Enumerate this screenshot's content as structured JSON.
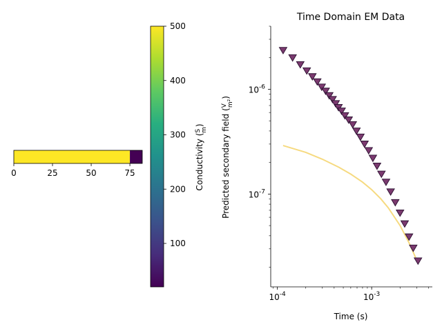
{
  "chart_data": [
    {
      "type": "heatmap",
      "description_axis": "depth",
      "x_ticks": [
        "0",
        "25",
        "50",
        "75"
      ],
      "xlim": [
        0,
        83
      ],
      "segments": [
        {
          "x_start": 0,
          "x_end": 75,
          "conductivity": 500
        },
        {
          "x_start": 75,
          "x_end": 83,
          "conductivity": 20
        }
      ]
    },
    {
      "type": "colorbar",
      "colormap": "viridis",
      "range": [
        20,
        500
      ],
      "ticks": [
        "100",
        "200",
        "300",
        "400",
        "500"
      ],
      "label": "Conductivity",
      "label_unit": "(S/m)"
    },
    {
      "type": "scatter+line",
      "title": "Time Domain EM Data",
      "xlabel": "Time (s)",
      "ylabel": "Predicted secondary field",
      "ylabel_unit": "(V/m²)",
      "xscale": "log",
      "yscale": "log",
      "xlim": [
        8.5e-05,
        0.0044
      ],
      "ylim": [
        1.3e-08,
        4e-06
      ],
      "x_tick_labels": [
        "10^-4",
        "10^-3"
      ],
      "y_tick_labels": [
        "10^-7",
        "10^-6"
      ],
      "series": [
        {
          "style": "markers",
          "marker": "triangle-down",
          "color": "#7b3a6f",
          "x": [
            0.000115,
            0.000145,
            0.000175,
            0.000205,
            0.000235,
            0.000265,
            0.000295,
            0.000325,
            0.000355,
            0.000385,
            0.000415,
            0.000445,
            0.00048,
            0.00052,
            0.00057,
            0.00063,
            0.00069,
            0.00076,
            0.00084,
            0.00093,
            0.00103,
            0.00114,
            0.00127,
            0.00142,
            0.00159,
            0.00178,
            0.002,
            0.00224,
            0.00249,
            0.00276,
            0.0031
          ],
          "y": [
            2.35e-06,
            2e-06,
            1.72e-06,
            1.5e-06,
            1.32e-06,
            1.18e-06,
            1.05e-06,
            9.6e-07,
            8.7e-07,
            8e-07,
            7.3e-07,
            6.7e-07,
            6.2e-07,
            5.6e-07,
            5.1e-07,
            4.6e-07,
            4e-07,
            3.5e-07,
            3e-07,
            2.6e-07,
            2.2e-07,
            1.85e-07,
            1.55e-07,
            1.3e-07,
            1.05e-07,
            8.3e-08,
            6.6e-08,
            5.2e-08,
            3.9e-08,
            3.05e-08,
            2.3e-08
          ]
        },
        {
          "style": "line",
          "color": "#f5d46a",
          "x": [
            0.000115,
            0.0002,
            0.0003,
            0.00045,
            0.0006,
            0.0008,
            0.001,
            0.00125,
            0.0015,
            0.002,
            0.0025,
            0.0031
          ],
          "y": [
            2.9e-07,
            2.5e-07,
            2.15e-07,
            1.8e-07,
            1.55e-07,
            1.3e-07,
            1.1e-07,
            9e-08,
            7.4e-08,
            5e-08,
            3.4e-08,
            2.2e-08
          ]
        }
      ]
    }
  ]
}
